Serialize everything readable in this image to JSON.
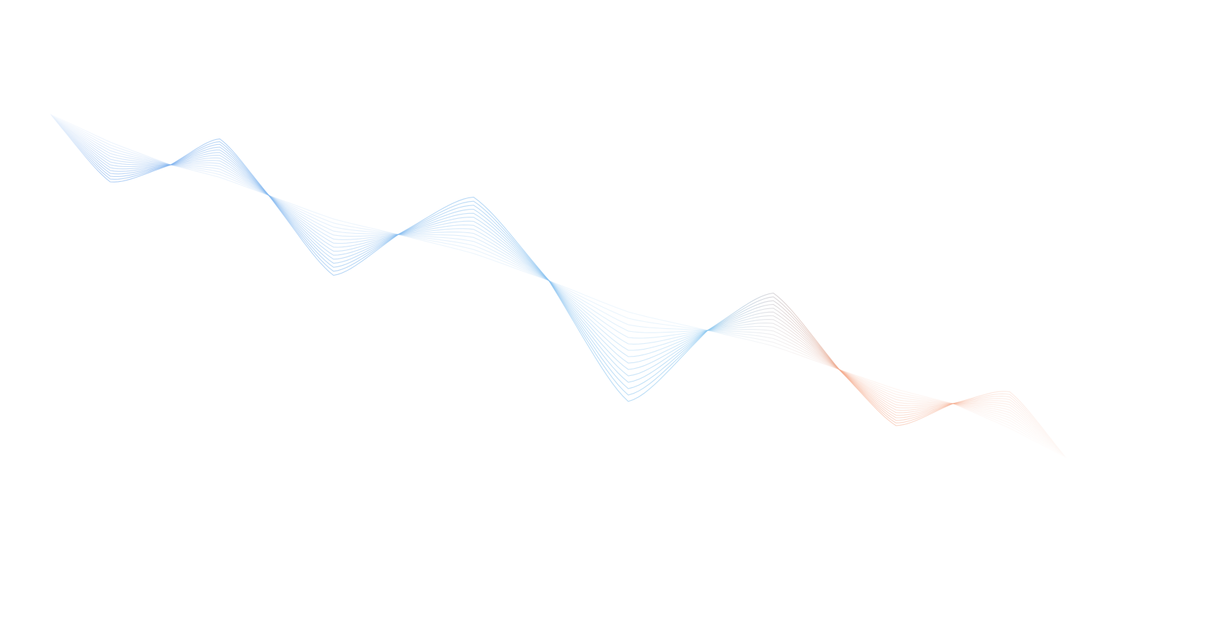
{
  "graphic": {
    "type": "decorative-wave-lines",
    "line_count": 15,
    "colors": {
      "start": "#7fb0ee",
      "middle": "#8cc8f0",
      "end": "#f4a98a",
      "background": "#ffffff"
    }
  }
}
